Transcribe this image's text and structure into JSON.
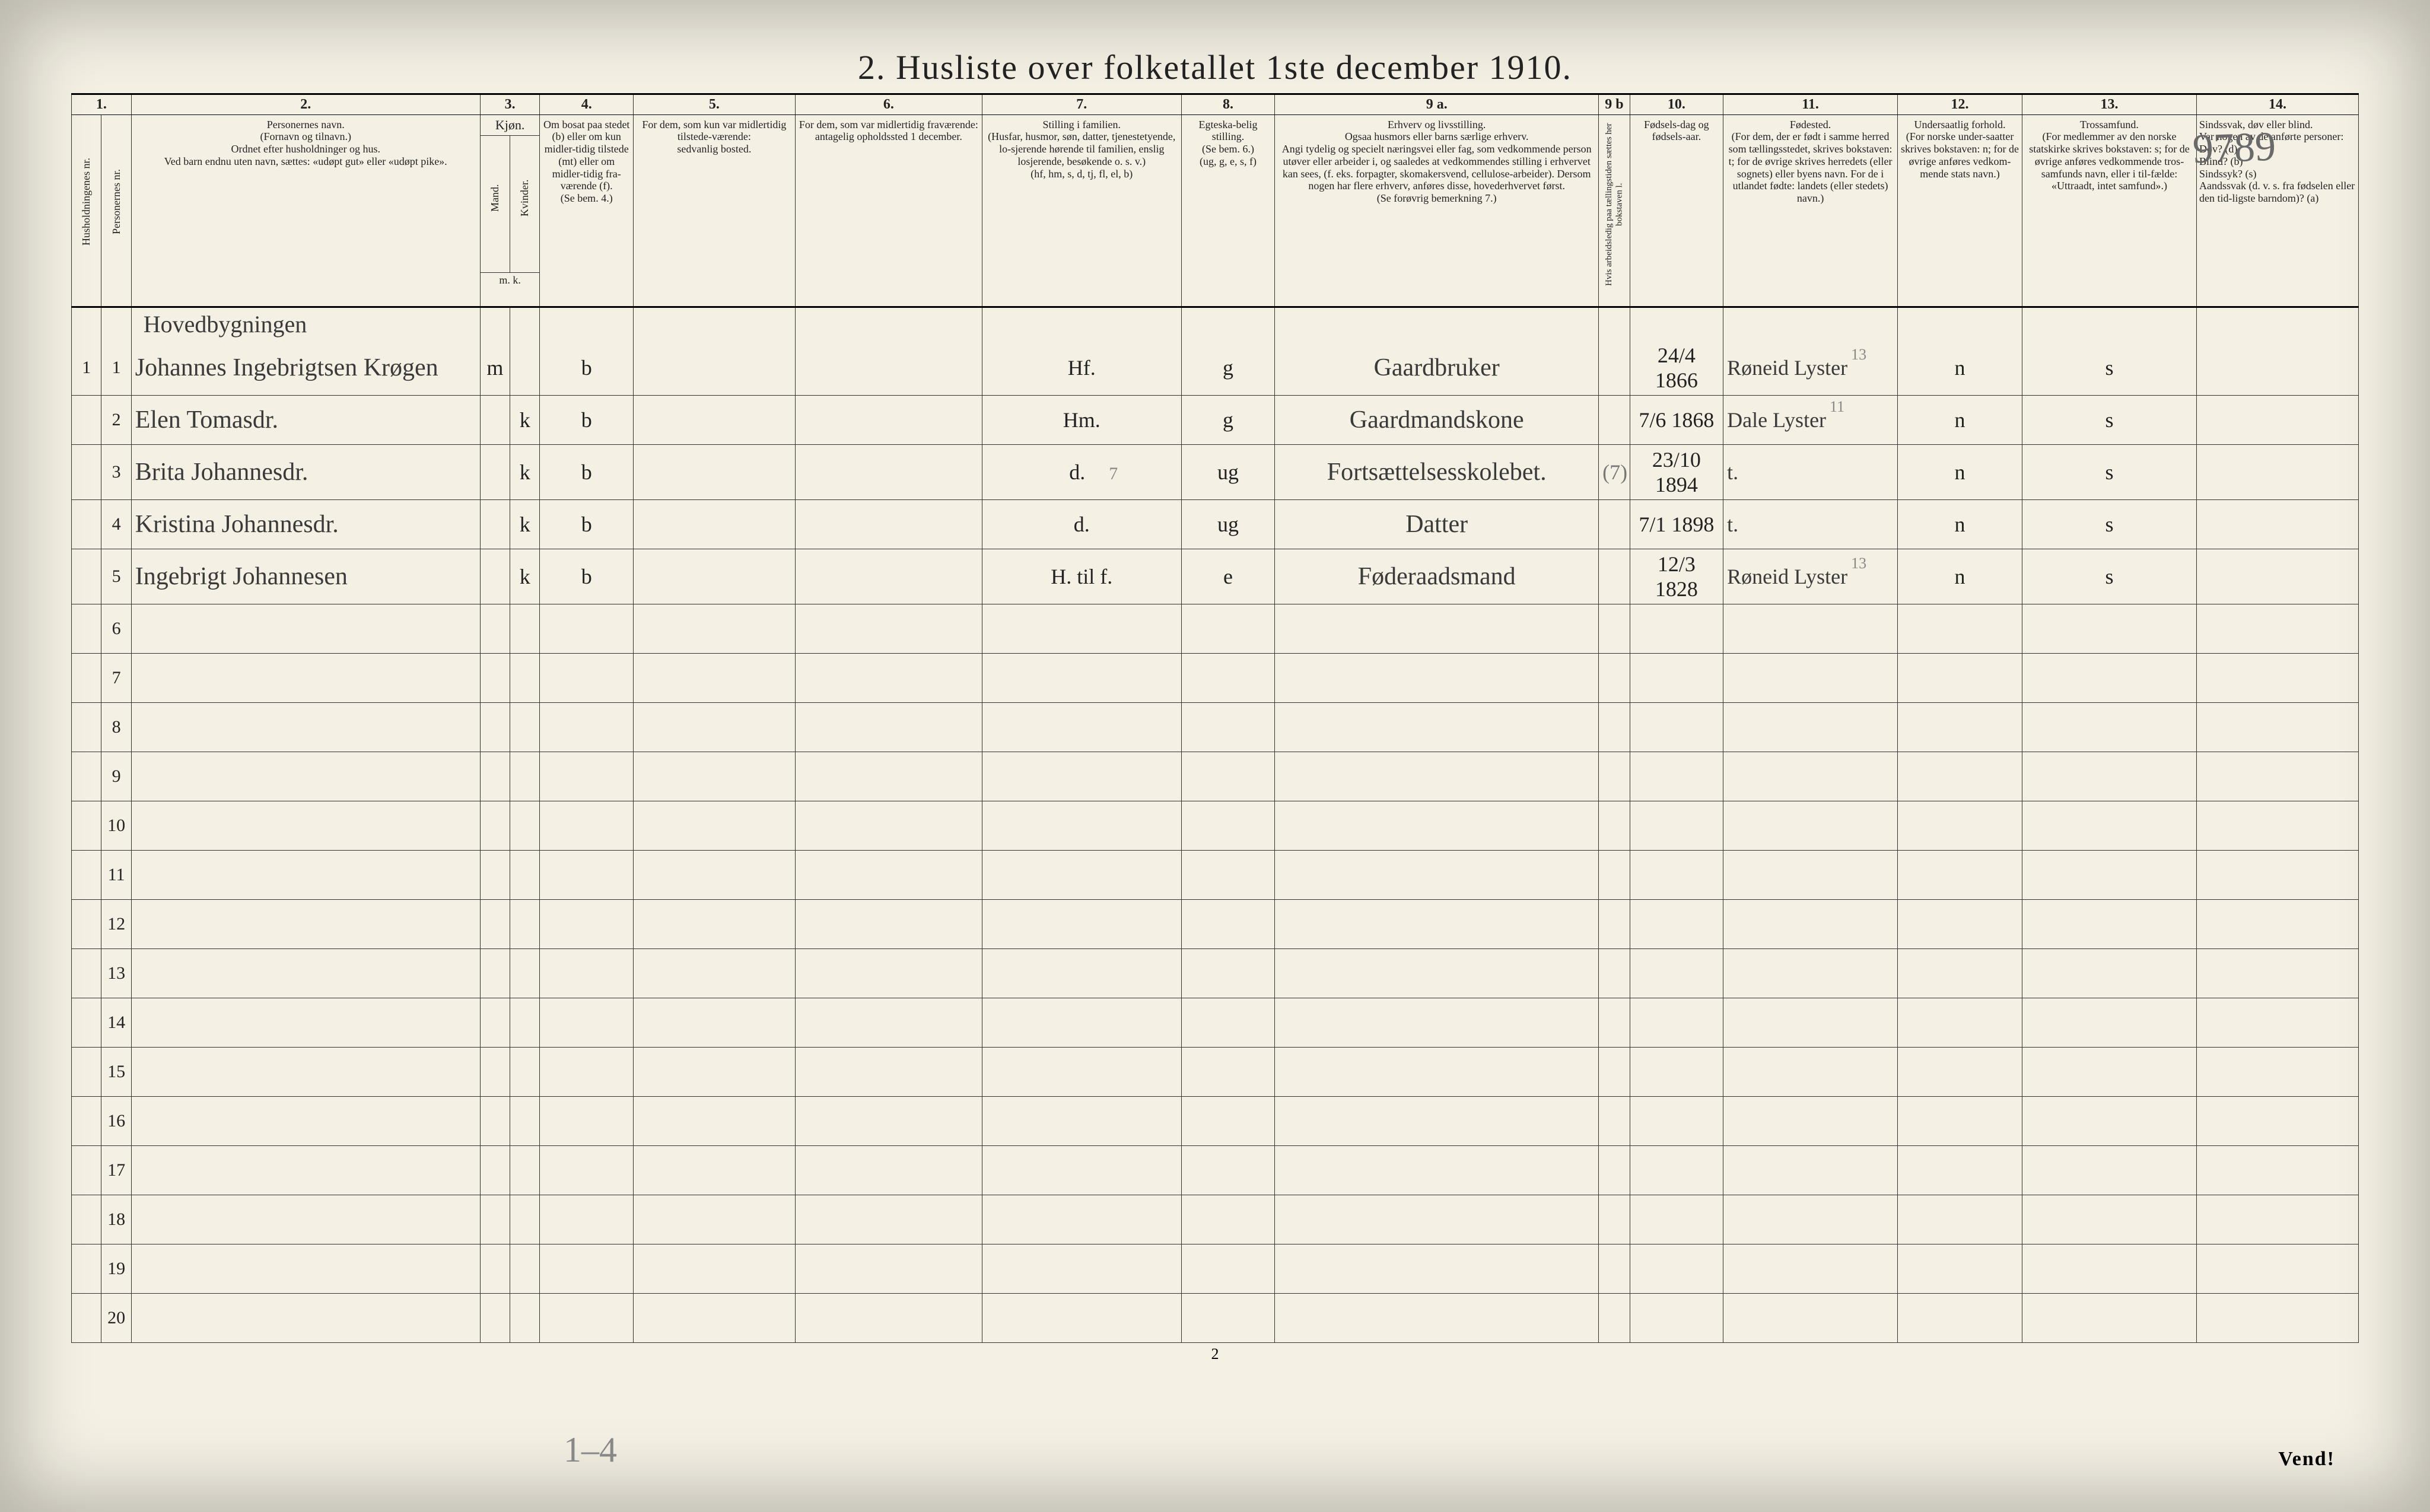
{
  "title": "2.  Husliste over folketallet 1ste december 1910.",
  "hand_number_top": "9789",
  "pencil_bottom": "1–4",
  "footer_page": "2",
  "vend": "Vend!",
  "colnums": [
    "1.",
    "",
    "2.",
    "3.",
    "",
    "4.",
    "5.",
    "6.",
    "7.",
    "8.",
    "9 a.",
    "9 b",
    "10.",
    "11.",
    "12.",
    "13.",
    "14."
  ],
  "headers": {
    "c1a": "Husholdningenes nr.",
    "c1b": "Personernes nr.",
    "c2": "Personernes navn.\n(Fornavn og tilnavn.)\nOrdnet efter husholdninger og hus.\nVed barn endnu uten navn, sættes: «udøpt gut» eller «udøpt pike».",
    "c3": "Kjøn.",
    "c3a": "Mand.",
    "c3b": "Kvinder.",
    "c3mk": "m.   k.",
    "c4": "Om bosat paa stedet (b) eller om kun midler-tidig tilstede (mt) eller om midler-tidig fra-værende (f).\n(Se bem. 4.)",
    "c5": "For dem, som kun var midlertidig tilstede-værende:\nsedvanlig bosted.",
    "c6": "For dem, som var midlertidig fraværende:\nantagelig opholdssted 1 december.",
    "c7": "Stilling i familien.\n(Husfar, husmor, søn, datter, tjenestetyende, lo-sjerende hørende til familien, enslig losjerende, besøkende o. s. v.)\n(hf, hm, s, d, tj, fl, el, b)",
    "c8": "Egteska-belig stilling.\n(Se bem. 6.)\n(ug, g, e, s, f)",
    "c9": "Erhverv og livsstilling.\nOgsaa husmors eller barns særlige erhverv.\nAngi tydelig og specielt næringsvei eller fag, som vedkommende person utøver eller arbeider i, og saaledes at vedkommendes stilling i erhvervet kan sees, (f. eks. forpagter, skomakersvend, cellulose-arbeider). Dersom nogen har flere erhverv, anføres disse, hovederhvervet først.\n(Se forøvrig bemerkning 7.)",
    "c9b": "Hvis arbeidsledig paa tællingstiden sættes her bokstaven l.",
    "c10": "Fødsels-dag og fødsels-aar.",
    "c11": "Fødested.\n(For dem, der er født i samme herred som tællingsstedet, skrives bokstaven: t; for de øvrige skrives herredets (eller sognets) eller byens navn. For de i utlandet fødte: landets (eller stedets) navn.)",
    "c12": "Undersaatlig forhold.\n(For norske under-saatter skrives bokstaven: n; for de øvrige anføres vedkom-mende stats navn.)",
    "c13": "Trossamfund.\n(For medlemmer av den norske statskirke skrives bokstaven: s; for de øvrige anføres vedkommende tros-samfunds navn, eller i til-fælde: «Uttraadt, intet samfund».)",
    "c14": "Sindssvak, døv eller blind.\nVar nogen av de anførte personer:\nDøv?      (d)\nBlind?    (b)\nSindssyk? (s)\nAandssvak (d. v. s. fra fødselen eller den tid-ligste barndom)? (a)"
  },
  "section_label": "Hovedbygningen",
  "rows": [
    {
      "hh": "1",
      "p": "1",
      "name": "Johannes Ingebrigtsen Krøgen",
      "sex_m": "m",
      "sex_k": "",
      "bos": "b",
      "c5": "",
      "c6": "",
      "fam": "Hf.",
      "egt": "g",
      "erhv": "Gaardbruker",
      "c9b": "",
      "fod": "24/4 1866",
      "fsted": "Røneid Lyster",
      "und": "n",
      "tro": "s",
      "c14": "",
      "pencil11": "13"
    },
    {
      "hh": "",
      "p": "2",
      "name": "Elen Tomasdr.",
      "sex_m": "",
      "sex_k": "k",
      "bos": "b",
      "c5": "",
      "c6": "",
      "fam": "Hm.",
      "egt": "g",
      "erhv": "Gaardmandskone",
      "c9b": "",
      "fod": "7/6 1868",
      "fsted": "Dale Lyster",
      "und": "n",
      "tro": "s",
      "c14": "",
      "pencil11": "11"
    },
    {
      "hh": "",
      "p": "3",
      "name": "Brita Johannesdr.",
      "sex_m": "",
      "sex_k": "k",
      "bos": "b",
      "c5": "",
      "c6": "",
      "fam": "d.",
      "egt": "ug",
      "erhv": "Fortsættelsesskolebet.",
      "c9b": "(7)",
      "fod": "23/10 1894",
      "fsted": "t.",
      "und": "n",
      "tro": "s",
      "c14": "",
      "pencil7": "7"
    },
    {
      "hh": "",
      "p": "4",
      "name": "Kristina Johannesdr.",
      "sex_m": "",
      "sex_k": "k",
      "bos": "b",
      "c5": "",
      "c6": "",
      "fam": "d.",
      "egt": "ug",
      "erhv": "Datter",
      "c9b": "",
      "fod": "7/1 1898",
      "fsted": "t.",
      "und": "n",
      "tro": "s",
      "c14": ""
    },
    {
      "hh": "",
      "p": "5",
      "name": "Ingebrigt Johannesen",
      "sex_m": "",
      "sex_k": "k",
      "bos": "b",
      "c5": "",
      "c6": "",
      "fam": "H. til f.",
      "egt": "e",
      "erhv": "Føderaadsmand",
      "c9b": "",
      "fod": "12/3 1828",
      "fsted": "Røneid Lyster",
      "und": "n",
      "tro": "s",
      "c14": "",
      "pencil11": "13"
    }
  ],
  "empty_rows": [
    6,
    7,
    8,
    9,
    10,
    11,
    12,
    13,
    14,
    15,
    16,
    17,
    18,
    19,
    20
  ]
}
